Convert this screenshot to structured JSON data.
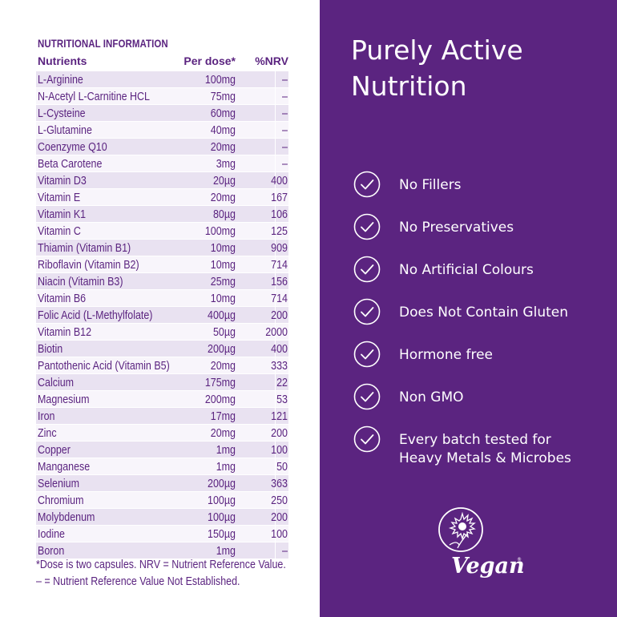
{
  "nutrition": {
    "title": "NUTRITIONAL INFORMATION",
    "headers": {
      "name": "Nutrients",
      "dose": "Per dose*",
      "nrv": "%NRV"
    },
    "rows": [
      {
        "name": "L-Arginine",
        "dose": "100mg",
        "nrv": "–"
      },
      {
        "name": "N-Acetyl L-Carnitine HCL",
        "dose": "75mg",
        "nrv": "–"
      },
      {
        "name": "L-Cysteine",
        "dose": "60mg",
        "nrv": "–"
      },
      {
        "name": "L-Glutamine",
        "dose": "40mg",
        "nrv": "–"
      },
      {
        "name": "Coenzyme Q10",
        "dose": "20mg",
        "nrv": "–"
      },
      {
        "name": "Beta Carotene",
        "dose": "3mg",
        "nrv": "–"
      },
      {
        "name": "Vitamin D3",
        "dose": "20µg",
        "nrv": "400"
      },
      {
        "name": "Vitamin E",
        "dose": "20mg",
        "nrv": "167"
      },
      {
        "name": "Vitamin K1",
        "dose": "80µg",
        "nrv": "106"
      },
      {
        "name": "Vitamin C",
        "dose": "100mg",
        "nrv": "125"
      },
      {
        "name": "Thiamin (Vitamin B1)",
        "dose": "10mg",
        "nrv": "909"
      },
      {
        "name": "Riboflavin (Vitamin B2)",
        "dose": "10mg",
        "nrv": "714"
      },
      {
        "name": "Niacin (Vitamin B3)",
        "dose": "25mg",
        "nrv": "156"
      },
      {
        "name": "Vitamin B6",
        "dose": "10mg",
        "nrv": "714"
      },
      {
        "name": "Folic Acid (L-Methylfolate)",
        "dose": "400µg",
        "nrv": "200"
      },
      {
        "name": "Vitamin B12",
        "dose": "50µg",
        "nrv": "2000"
      },
      {
        "name": "Biotin",
        "dose": "200µg",
        "nrv": "400"
      },
      {
        "name": "Pantothenic Acid (Vitamin B5)",
        "dose": "20mg",
        "nrv": "333"
      },
      {
        "name": "Calcium",
        "dose": "175mg",
        "nrv": "22"
      },
      {
        "name": "Magnesium",
        "dose": "200mg",
        "nrv": "53"
      },
      {
        "name": "Iron",
        "dose": "17mg",
        "nrv": "121"
      },
      {
        "name": "Zinc",
        "dose": "20mg",
        "nrv": "200"
      },
      {
        "name": "Copper",
        "dose": "1mg",
        "nrv": "100"
      },
      {
        "name": "Manganese",
        "dose": "1mg",
        "nrv": "50"
      },
      {
        "name": "Selenium",
        "dose": "200µg",
        "nrv": "363"
      },
      {
        "name": "Chromium",
        "dose": "100µg",
        "nrv": "250"
      },
      {
        "name": "Molybdenum",
        "dose": "100µg",
        "nrv": "200"
      },
      {
        "name": "Iodine",
        "dose": "150µg",
        "nrv": "100"
      },
      {
        "name": "Boron",
        "dose": "1mg",
        "nrv": "–"
      }
    ],
    "footnotes": [
      "*Dose is two capsules. NRV = Nutrient Reference Value.",
      "– = Nutrient Reference Value Not Established."
    ]
  },
  "panel": {
    "headline": [
      "Purely Active",
      "Nutrition"
    ],
    "features": [
      {
        "icon": "check-circle-icon",
        "lines": [
          "No Fillers"
        ]
      },
      {
        "icon": "check-circle-icon",
        "lines": [
          "No Preservatives"
        ]
      },
      {
        "icon": "check-circle-icon",
        "lines": [
          "No Artificial Colours"
        ]
      },
      {
        "icon": "check-circle-icon",
        "lines": [
          "Does Not Contain Gluten"
        ]
      },
      {
        "icon": "check-circle-icon",
        "lines": [
          "Hormone free"
        ]
      },
      {
        "icon": "check-circle-icon",
        "lines": [
          "Non GMO"
        ]
      },
      {
        "icon": "check-circle-icon",
        "lines": [
          "Every batch tested for",
          "Heavy Metals & Microbes"
        ]
      }
    ],
    "logo_text": "Vegan"
  },
  "colors": {
    "brand": "#5b2480",
    "row_odd": "#e9e2f1",
    "row_even": "#f8f5fb",
    "text_light": "#ffffff"
  }
}
